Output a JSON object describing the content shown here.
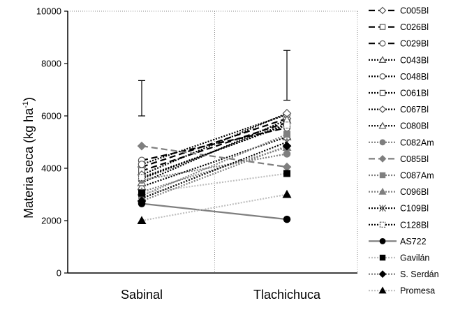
{
  "chart_data": {
    "type": "line",
    "categories": [
      "Sabinal",
      "Tlachichuca"
    ],
    "ylabel": "Materia seca (kg ha",
    "ylabel_sup": "-1",
    "ylabel_close": ")",
    "ylim": [
      0,
      10000
    ],
    "yticks": [
      "0",
      "2000",
      "4000",
      "6000",
      "8000",
      "10000"
    ],
    "grid": "vertical dotted",
    "legend_position": "right",
    "error_bars": [
      {
        "category": "Sabinal",
        "low": 6000,
        "high": 7350
      },
      {
        "category": "Tlachichuca",
        "low": 6600,
        "high": 8500
      }
    ],
    "series": [
      {
        "name": "C005Bl",
        "values": [
          4050,
          5900
        ],
        "color": "#000000",
        "dash": "long",
        "marker": "diamond",
        "fill": "#ffffff"
      },
      {
        "name": "C026Bl",
        "values": [
          3900,
          5750
        ],
        "color": "#000000",
        "dash": "long",
        "marker": "square",
        "fill": "#ffffff"
      },
      {
        "name": "C029Bl",
        "values": [
          4300,
          5550
        ],
        "color": "#000000",
        "dash": "long",
        "marker": "circle",
        "fill": "#ffffff"
      },
      {
        "name": "C043Bl",
        "values": [
          3300,
          5200
        ],
        "color": "#000000",
        "dash": "dot",
        "marker": "triangle",
        "fill": "#ffffff"
      },
      {
        "name": "C048Bl",
        "values": [
          4150,
          6050
        ],
        "color": "#000000",
        "dash": "dot",
        "marker": "circle",
        "fill": "#ffffff"
      },
      {
        "name": "C061Bl",
        "values": [
          3600,
          5700
        ],
        "color": "#000000",
        "dash": "dot",
        "marker": "square",
        "fill": "#ffffff"
      },
      {
        "name": "C067Bl",
        "values": [
          3750,
          6100
        ],
        "color": "#000000",
        "dash": "dot",
        "marker": "diamond",
        "fill": "#ffffff"
      },
      {
        "name": "C080Bl",
        "values": [
          3450,
          5850
        ],
        "color": "#000000",
        "dash": "dot",
        "marker": "triangle",
        "fill": "#ffffff"
      },
      {
        "name": "C082Am",
        "values": [
          3550,
          4550
        ],
        "color": "#7f7f7f",
        "dash": "dot",
        "marker": "circle",
        "fill": "#7f7f7f"
      },
      {
        "name": "C085Bl",
        "values": [
          4850,
          4050
        ],
        "color": "#7f7f7f",
        "dash": "long",
        "marker": "diamond",
        "fill": "#7f7f7f"
      },
      {
        "name": "C087Am",
        "values": [
          2950,
          5300
        ],
        "color": "#7f7f7f",
        "dash": "dot",
        "marker": "square",
        "fill": "#7f7f7f"
      },
      {
        "name": "C096Bl",
        "values": [
          3100,
          4800
        ],
        "color": "#7f7f7f",
        "dash": "dot",
        "marker": "triangle",
        "fill": "#7f7f7f"
      },
      {
        "name": "C109Bl",
        "values": [
          2850,
          5000
        ],
        "color": "#000000",
        "dash": "dot",
        "marker": "asterisk",
        "fill": "#ffffff"
      },
      {
        "name": "C128Bl",
        "values": [
          3650,
          5650
        ],
        "color": "#000000",
        "dash": "dot",
        "marker": "dashed-square",
        "fill": "#ffffff"
      },
      {
        "name": "AS722",
        "values": [
          2650,
          2050
        ],
        "color": "#7f7f7f",
        "dash": "solid",
        "marker": "circle",
        "fill": "#000000"
      },
      {
        "name": "Gavilán",
        "values": [
          3050,
          3800
        ],
        "color": "#bfbfbf",
        "dash": "dot",
        "marker": "square",
        "fill": "#000000"
      },
      {
        "name": "S. Serdán",
        "values": [
          2750,
          4850
        ],
        "color": "#7f7f7f",
        "dash": "dot",
        "marker": "diamond",
        "fill": "#000000"
      },
      {
        "name": "Promesa",
        "values": [
          2000,
          3000
        ],
        "color": "#bfbfbf",
        "dash": "dot",
        "marker": "triangle",
        "fill": "#000000"
      }
    ]
  }
}
